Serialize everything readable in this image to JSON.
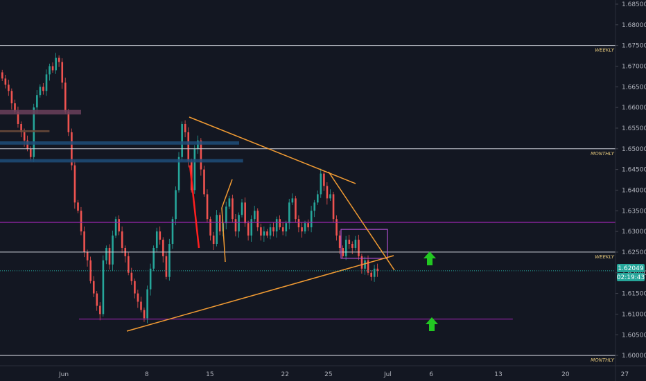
{
  "chart_data": {
    "type": "candlestick",
    "price_axis": {
      "ticks": [
        "1.68500",
        "1.68000",
        "1.67500",
        "1.67000",
        "1.66500",
        "1.66000",
        "1.65500",
        "1.65000",
        "1.64500",
        "1.64000",
        "1.63500",
        "1.63000",
        "1.62500",
        "1.62000",
        "1.61500",
        "1.61000",
        "1.60500",
        "1.60000"
      ],
      "ylim": [
        1.5975,
        1.686
      ]
    },
    "time_axis": {
      "ticks": [
        "Jun",
        "8",
        "15",
        "22",
        "25",
        "Jul",
        "6",
        "13",
        "20",
        "27"
      ],
      "index_range": [
        0,
        140
      ]
    },
    "current_price": "1.62049",
    "countdown": "02:19:43",
    "levels": [
      {
        "label": "WEEKLY",
        "price": 1.675,
        "color": "#d1d4dc"
      },
      {
        "label": "MONTHLY",
        "price": 1.65,
        "color": "#d1d4dc"
      },
      {
        "label": "WEEKLY",
        "price": 1.625,
        "color": "#d1d4dc"
      },
      {
        "label": "MONTHLY",
        "price": 1.6,
        "color": "#d1d4dc"
      }
    ],
    "candles_close": [
      1.667,
      1.6655,
      1.664,
      1.661,
      1.659,
      1.656,
      1.654,
      1.652,
      1.65,
      1.648,
      1.66,
      1.663,
      1.665,
      1.664,
      1.668,
      1.67,
      1.669,
      1.672,
      1.671,
      1.666,
      1.659,
      1.654,
      1.646,
      1.637,
      1.635,
      1.63,
      1.625,
      1.623,
      1.618,
      1.615,
      1.612,
      1.61,
      1.623,
      1.626,
      1.622,
      1.629,
      1.633,
      1.63,
      1.626,
      1.624,
      1.62,
      1.618,
      1.615,
      1.613,
      1.611,
      1.609,
      1.616,
      1.621,
      1.626,
      1.63,
      1.628,
      1.624,
      1.619,
      1.627,
      1.633,
      1.64,
      1.648,
      1.656,
      1.654,
      1.647,
      1.64,
      1.65,
      1.652,
      1.645,
      1.639,
      1.633,
      1.629,
      1.627,
      1.634,
      1.63,
      1.632,
      1.636,
      1.638,
      1.633,
      1.63,
      1.634,
      1.637,
      1.632,
      1.629,
      1.633,
      1.635,
      1.631,
      1.629,
      1.63,
      1.629,
      1.631,
      1.63,
      1.633,
      1.631,
      1.63,
      1.632,
      1.637,
      1.638,
      1.633,
      1.631,
      1.63,
      1.632,
      1.631,
      1.635,
      1.637,
      1.639,
      1.644,
      1.641,
      1.638,
      1.639,
      1.633,
      1.629,
      1.626,
      1.624,
      1.628,
      1.627,
      1.626,
      1.628,
      1.624,
      1.621,
      1.623,
      1.62,
      1.619,
      1.621,
      1.6205
    ],
    "highlight_boxes": [
      {
        "x": [
          0,
          20
        ],
        "y": [
          1.6583,
          1.6594
        ],
        "color": "#6b3f5a"
      },
      {
        "x": [
          0,
          12
        ],
        "y": [
          1.654,
          1.6545
        ],
        "color": "#6b4a3a"
      },
      {
        "x": [
          0,
          60
        ],
        "y": [
          1.651,
          1.6518
        ],
        "color": "#1f4e79"
      },
      {
        "x": [
          0,
          61
        ],
        "y": [
          1.6467,
          1.6475
        ],
        "color": "#1f4e79"
      }
    ],
    "purple_lines": [
      {
        "price": 1.6322,
        "x": [
          0,
          160
        ]
      },
      {
        "price": 1.6088,
        "x": [
          20,
          128
        ]
      }
    ],
    "purple_box": {
      "x": [
        85,
        97
      ],
      "y": [
        1.6235,
        1.6305
      ]
    },
    "trendlines": [
      {
        "from": [
          47,
          1.6576
        ],
        "to": [
          88,
          1.6415
        ],
        "color": "#f39c33"
      },
      {
        "from": [
          82,
          1.6445
        ],
        "to": [
          98,
          1.6215
        ],
        "color": "#f39c33"
      },
      {
        "from": [
          31,
          1.6053
        ],
        "to": [
          98,
          1.6237
        ],
        "color": "#f39c33"
      },
      {
        "from": [
          53,
          1.63
        ],
        "to": [
          56,
          1.6375
        ],
        "color": "#f39c33"
      },
      {
        "from": [
          55,
          1.638
        ],
        "to": [
          57,
          1.6225
        ],
        "color": "#f39c33"
      }
    ],
    "arrows": [
      {
        "x": 107,
        "price": 1.6225,
        "color": "#22c722"
      },
      {
        "x": 107,
        "price": 1.607,
        "color": "#22c722"
      }
    ]
  }
}
